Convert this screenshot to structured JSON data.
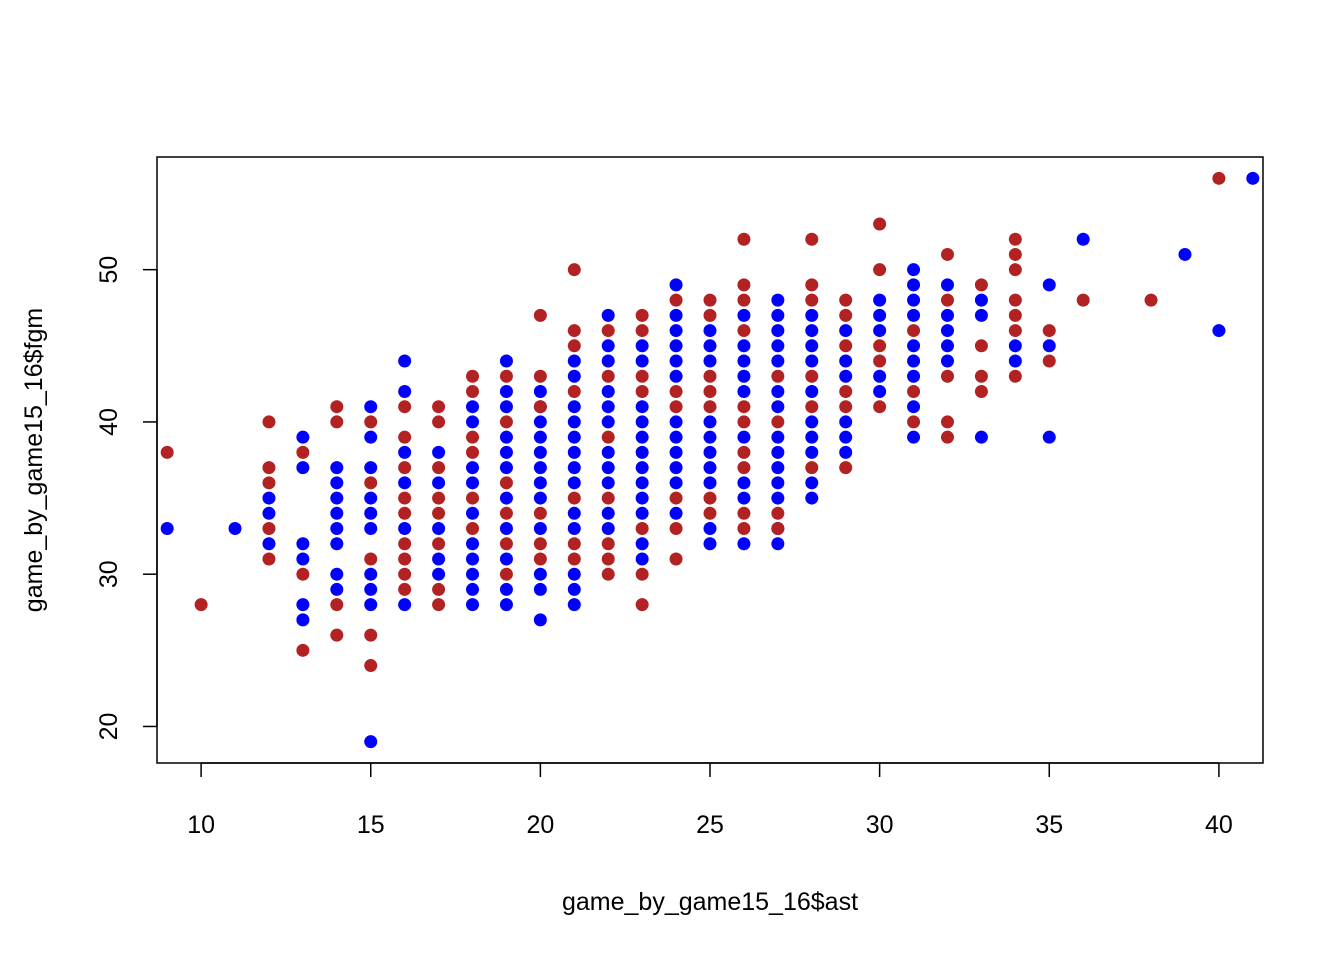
{
  "chart_data": {
    "type": "scatter",
    "title": "",
    "xlabel": "game_by_game15_16$ast",
    "ylabel": "game_by_game15_16$fgm",
    "xlim": [
      8.7,
      41.3
    ],
    "ylim": [
      17.6,
      57.4
    ],
    "x_ticks": [
      10,
      15,
      20,
      25,
      30,
      35,
      40
    ],
    "y_ticks": [
      20,
      30,
      40,
      50
    ],
    "grid": false,
    "legend": "none",
    "series": [
      {
        "color": "#0000FF",
        "points": [
          [
            9,
            33
          ],
          [
            11,
            33
          ],
          [
            12,
            32
          ],
          [
            12,
            34
          ],
          [
            12,
            35
          ],
          [
            13,
            27
          ],
          [
            13,
            28
          ],
          [
            13,
            31
          ],
          [
            13,
            32
          ],
          [
            13,
            37
          ],
          [
            13,
            39
          ],
          [
            14,
            29
          ],
          [
            14,
            30
          ],
          [
            14,
            32
          ],
          [
            14,
            33
          ],
          [
            14,
            34
          ],
          [
            14,
            35
          ],
          [
            14,
            36
          ],
          [
            14,
            37
          ],
          [
            15,
            19
          ],
          [
            15,
            28
          ],
          [
            15,
            29
          ],
          [
            15,
            30
          ],
          [
            15,
            33
          ],
          [
            15,
            34
          ],
          [
            15,
            35
          ],
          [
            15,
            37
          ],
          [
            15,
            39
          ],
          [
            15,
            41
          ],
          [
            16,
            28
          ],
          [
            16,
            33
          ],
          [
            16,
            36
          ],
          [
            16,
            38
          ],
          [
            16,
            42
          ],
          [
            16,
            44
          ],
          [
            17,
            30
          ],
          [
            17,
            31
          ],
          [
            17,
            33
          ],
          [
            17,
            36
          ],
          [
            17,
            38
          ],
          [
            18,
            28
          ],
          [
            18,
            29
          ],
          [
            18,
            30
          ],
          [
            18,
            31
          ],
          [
            18,
            32
          ],
          [
            18,
            34
          ],
          [
            18,
            36
          ],
          [
            18,
            37
          ],
          [
            18,
            40
          ],
          [
            18,
            41
          ],
          [
            19,
            28
          ],
          [
            19,
            29
          ],
          [
            19,
            31
          ],
          [
            19,
            33
          ],
          [
            19,
            35
          ],
          [
            19,
            37
          ],
          [
            19,
            38
          ],
          [
            19,
            39
          ],
          [
            19,
            41
          ],
          [
            19,
            42
          ],
          [
            19,
            44
          ],
          [
            20,
            27
          ],
          [
            20,
            29
          ],
          [
            20,
            30
          ],
          [
            20,
            33
          ],
          [
            20,
            35
          ],
          [
            20,
            36
          ],
          [
            20,
            37
          ],
          [
            20,
            38
          ],
          [
            20,
            39
          ],
          [
            20,
            40
          ],
          [
            20,
            41
          ],
          [
            20,
            42
          ],
          [
            21,
            28
          ],
          [
            21,
            29
          ],
          [
            21,
            30
          ],
          [
            21,
            33
          ],
          [
            21,
            34
          ],
          [
            21,
            36
          ],
          [
            21,
            37
          ],
          [
            21,
            38
          ],
          [
            21,
            39
          ],
          [
            21,
            40
          ],
          [
            21,
            41
          ],
          [
            21,
            43
          ],
          [
            21,
            44
          ],
          [
            22,
            33
          ],
          [
            22,
            34
          ],
          [
            22,
            36
          ],
          [
            22,
            37
          ],
          [
            22,
            38
          ],
          [
            22,
            40
          ],
          [
            22,
            41
          ],
          [
            22,
            42
          ],
          [
            22,
            44
          ],
          [
            22,
            45
          ],
          [
            22,
            47
          ],
          [
            23,
            31
          ],
          [
            23,
            32
          ],
          [
            23,
            34
          ],
          [
            23,
            35
          ],
          [
            23,
            36
          ],
          [
            23,
            37
          ],
          [
            23,
            38
          ],
          [
            23,
            39
          ],
          [
            23,
            40
          ],
          [
            23,
            41
          ],
          [
            23,
            44
          ],
          [
            23,
            45
          ],
          [
            24,
            34
          ],
          [
            24,
            36
          ],
          [
            24,
            37
          ],
          [
            24,
            38
          ],
          [
            24,
            39
          ],
          [
            24,
            40
          ],
          [
            24,
            43
          ],
          [
            24,
            44
          ],
          [
            24,
            45
          ],
          [
            24,
            46
          ],
          [
            24,
            47
          ],
          [
            24,
            49
          ],
          [
            25,
            32
          ],
          [
            25,
            33
          ],
          [
            25,
            36
          ],
          [
            25,
            37
          ],
          [
            25,
            38
          ],
          [
            25,
            39
          ],
          [
            25,
            40
          ],
          [
            25,
            44
          ],
          [
            25,
            45
          ],
          [
            25,
            46
          ],
          [
            26,
            32
          ],
          [
            26,
            35
          ],
          [
            26,
            36
          ],
          [
            26,
            39
          ],
          [
            26,
            42
          ],
          [
            26,
            43
          ],
          [
            26,
            44
          ],
          [
            26,
            45
          ],
          [
            26,
            47
          ],
          [
            27,
            32
          ],
          [
            27,
            33
          ],
          [
            27,
            35
          ],
          [
            27,
            36
          ],
          [
            27,
            37
          ],
          [
            27,
            38
          ],
          [
            27,
            39
          ],
          [
            27,
            41
          ],
          [
            27,
            42
          ],
          [
            27,
            44
          ],
          [
            27,
            45
          ],
          [
            27,
            46
          ],
          [
            27,
            47
          ],
          [
            27,
            48
          ],
          [
            28,
            35
          ],
          [
            28,
            36
          ],
          [
            28,
            38
          ],
          [
            28,
            39
          ],
          [
            28,
            40
          ],
          [
            28,
            42
          ],
          [
            28,
            44
          ],
          [
            28,
            45
          ],
          [
            28,
            46
          ],
          [
            28,
            47
          ],
          [
            29,
            38
          ],
          [
            29,
            39
          ],
          [
            29,
            40
          ],
          [
            29,
            43
          ],
          [
            29,
            44
          ],
          [
            29,
            46
          ],
          [
            30,
            42
          ],
          [
            30,
            43
          ],
          [
            30,
            46
          ],
          [
            30,
            47
          ],
          [
            30,
            48
          ],
          [
            31,
            39
          ],
          [
            31,
            41
          ],
          [
            31,
            43
          ],
          [
            31,
            44
          ],
          [
            31,
            45
          ],
          [
            31,
            47
          ],
          [
            31,
            48
          ],
          [
            31,
            49
          ],
          [
            31,
            50
          ],
          [
            32,
            44
          ],
          [
            32,
            45
          ],
          [
            32,
            46
          ],
          [
            32,
            47
          ],
          [
            32,
            49
          ],
          [
            33,
            39
          ],
          [
            33,
            47
          ],
          [
            33,
            48
          ],
          [
            34,
            44
          ],
          [
            34,
            45
          ],
          [
            35,
            39
          ],
          [
            35,
            45
          ],
          [
            35,
            49
          ],
          [
            36,
            52
          ],
          [
            39,
            51
          ],
          [
            40,
            46
          ],
          [
            41,
            56
          ]
        ]
      },
      {
        "color": "#B22222",
        "points": [
          [
            9,
            38
          ],
          [
            10,
            28
          ],
          [
            12,
            31
          ],
          [
            12,
            33
          ],
          [
            12,
            36
          ],
          [
            12,
            37
          ],
          [
            12,
            40
          ],
          [
            13,
            25
          ],
          [
            13,
            30
          ],
          [
            13,
            38
          ],
          [
            14,
            26
          ],
          [
            14,
            28
          ],
          [
            14,
            40
          ],
          [
            14,
            41
          ],
          [
            15,
            24
          ],
          [
            15,
            26
          ],
          [
            15,
            31
          ],
          [
            15,
            36
          ],
          [
            15,
            40
          ],
          [
            16,
            29
          ],
          [
            16,
            30
          ],
          [
            16,
            31
          ],
          [
            16,
            32
          ],
          [
            16,
            34
          ],
          [
            16,
            35
          ],
          [
            16,
            37
          ],
          [
            16,
            39
          ],
          [
            16,
            41
          ],
          [
            17,
            28
          ],
          [
            17,
            29
          ],
          [
            17,
            32
          ],
          [
            17,
            34
          ],
          [
            17,
            35
          ],
          [
            17,
            37
          ],
          [
            17,
            40
          ],
          [
            17,
            41
          ],
          [
            18,
            33
          ],
          [
            18,
            35
          ],
          [
            18,
            38
          ],
          [
            18,
            39
          ],
          [
            18,
            42
          ],
          [
            18,
            43
          ],
          [
            19,
            30
          ],
          [
            19,
            32
          ],
          [
            19,
            34
          ],
          [
            19,
            36
          ],
          [
            19,
            40
          ],
          [
            19,
            43
          ],
          [
            20,
            31
          ],
          [
            20,
            32
          ],
          [
            20,
            34
          ],
          [
            20,
            41
          ],
          [
            20,
            43
          ],
          [
            20,
            47
          ],
          [
            21,
            31
          ],
          [
            21,
            32
          ],
          [
            21,
            35
          ],
          [
            21,
            42
          ],
          [
            21,
            45
          ],
          [
            21,
            46
          ],
          [
            21,
            50
          ],
          [
            22,
            30
          ],
          [
            22,
            31
          ],
          [
            22,
            32
          ],
          [
            22,
            35
          ],
          [
            22,
            39
          ],
          [
            22,
            43
          ],
          [
            22,
            46
          ],
          [
            23,
            28
          ],
          [
            23,
            30
          ],
          [
            23,
            33
          ],
          [
            23,
            42
          ],
          [
            23,
            43
          ],
          [
            23,
            46
          ],
          [
            23,
            47
          ],
          [
            24,
            31
          ],
          [
            24,
            33
          ],
          [
            24,
            35
          ],
          [
            24,
            41
          ],
          [
            24,
            42
          ],
          [
            24,
            48
          ],
          [
            25,
            34
          ],
          [
            25,
            35
          ],
          [
            25,
            41
          ],
          [
            25,
            42
          ],
          [
            25,
            43
          ],
          [
            25,
            47
          ],
          [
            25,
            48
          ],
          [
            26,
            33
          ],
          [
            26,
            34
          ],
          [
            26,
            37
          ],
          [
            26,
            38
          ],
          [
            26,
            40
          ],
          [
            26,
            41
          ],
          [
            26,
            46
          ],
          [
            26,
            48
          ],
          [
            26,
            49
          ],
          [
            26,
            52
          ],
          [
            27,
            33
          ],
          [
            27,
            34
          ],
          [
            27,
            40
          ],
          [
            27,
            43
          ],
          [
            28,
            37
          ],
          [
            28,
            41
          ],
          [
            28,
            43
          ],
          [
            28,
            48
          ],
          [
            28,
            49
          ],
          [
            28,
            52
          ],
          [
            29,
            37
          ],
          [
            29,
            41
          ],
          [
            29,
            42
          ],
          [
            29,
            45
          ],
          [
            29,
            47
          ],
          [
            29,
            48
          ],
          [
            30,
            41
          ],
          [
            30,
            44
          ],
          [
            30,
            45
          ],
          [
            30,
            50
          ],
          [
            30,
            53
          ],
          [
            31,
            40
          ],
          [
            31,
            42
          ],
          [
            31,
            46
          ],
          [
            32,
            39
          ],
          [
            32,
            40
          ],
          [
            32,
            43
          ],
          [
            32,
            48
          ],
          [
            32,
            51
          ],
          [
            33,
            42
          ],
          [
            33,
            43
          ],
          [
            33,
            45
          ],
          [
            33,
            49
          ],
          [
            34,
            43
          ],
          [
            34,
            46
          ],
          [
            34,
            47
          ],
          [
            34,
            48
          ],
          [
            34,
            50
          ],
          [
            34,
            51
          ],
          [
            34,
            52
          ],
          [
            35,
            44
          ],
          [
            35,
            46
          ],
          [
            36,
            48
          ],
          [
            38,
            48
          ],
          [
            40,
            56
          ]
        ]
      }
    ]
  }
}
